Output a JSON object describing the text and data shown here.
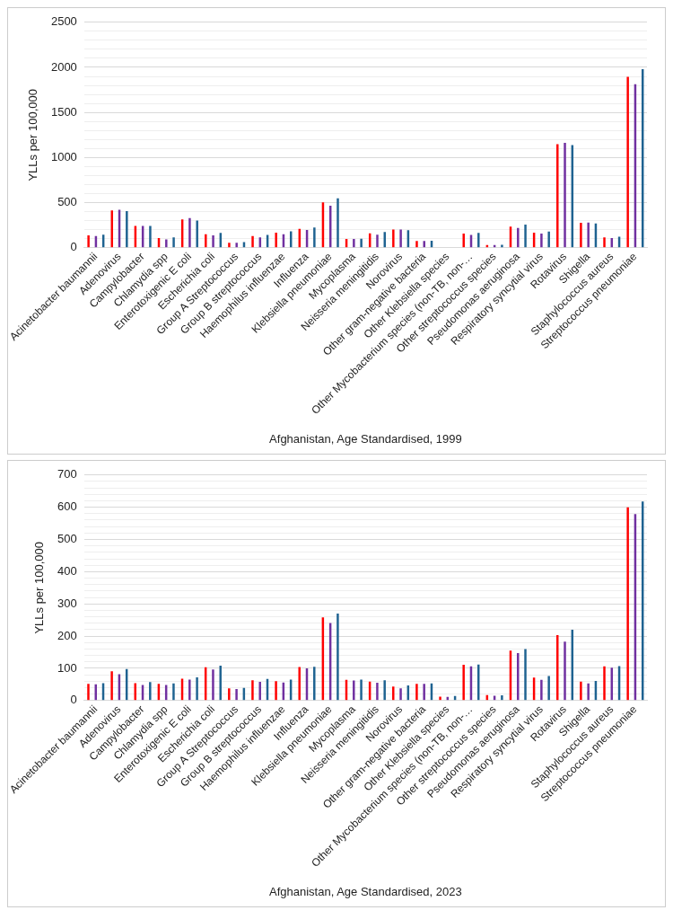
{
  "chart_data": [
    {
      "type": "bar",
      "xlabel": "Afghanistan, Age Standardised, 1999",
      "ylabel": "YLLs per 100,000",
      "categories": [
        "Acinetobacter baumannii",
        "Adenovirus",
        "Campylobacter",
        "Chlamydia spp",
        "Enterotoxigenic E coli",
        "Escherichia coli",
        "Group A Streptococcus",
        "Group B streptococcus",
        "Haemophilus influenzae",
        "Influenza",
        "Klebsiella pneumoniae",
        "Mycoplasma",
        "Neisseria meningitidis",
        "Norovirus",
        "Other gram-negative bacteria",
        "Other Klebsiella species",
        "Other Mycobacterium species (non-TB, non-…",
        "Other streptococcus species",
        "Pseudomonas aeruginosa",
        "Respiratory syncytial virus",
        "Rotavirus",
        "Shigella",
        "Staphylococcus aureus",
        "Streptococcus pneumoniae"
      ],
      "series": [
        {
          "color": "#ff0000",
          "values": [
            138,
            414,
            242,
            108,
            313,
            149,
            56,
            130,
            168,
            209,
            503,
            97,
            160,
            201,
            75,
            5,
            157,
            30,
            235,
            168,
            1149,
            276,
            116,
            1895
          ]
        },
        {
          "color": "#7030a0",
          "values": [
            130,
            421,
            242,
            93,
            328,
            138,
            56,
            116,
            149,
            198,
            466,
            97,
            145,
            201,
            75,
            5,
            142,
            30,
            220,
            157,
            1164,
            280,
            108,
            1813
          ]
        },
        {
          "color": "#1f6391",
          "values": [
            145,
            406,
            242,
            116,
            302,
            164,
            63,
            142,
            183,
            224,
            548,
            100,
            175,
            194,
            78,
            5,
            164,
            34,
            257,
            179,
            1138,
            269,
            123,
            1981
          ]
        }
      ],
      "ylim": [
        0,
        2500
      ],
      "yticks": [
        0,
        {
          "value": 100,
          "label": null
        },
        {
          "value": 200,
          "label": null
        },
        {
          "value": 300,
          "label": null
        },
        {
          "value": 400,
          "label": null
        },
        500,
        {
          "value": 600,
          "label": null
        },
        {
          "value": 700,
          "label": null
        },
        {
          "value": 800,
          "label": null
        },
        {
          "value": 900,
          "label": null
        },
        1000,
        {
          "value": 1100,
          "label": null
        },
        {
          "value": 1200,
          "label": null
        },
        {
          "value": 1300,
          "label": null
        },
        {
          "value": 1400,
          "label": null
        },
        1500,
        {
          "value": 1600,
          "label": null
        },
        {
          "value": 1700,
          "label": null
        },
        {
          "value": 1800,
          "label": null
        },
        {
          "value": 1900,
          "label": null
        },
        2000,
        {
          "value": 2100,
          "label": null
        },
        {
          "value": 2200,
          "label": null
        },
        {
          "value": 2300,
          "label": null
        },
        {
          "value": 2400,
          "label": null
        },
        2500
      ],
      "grid": "y",
      "legend": false
    },
    {
      "type": "bar",
      "xlabel": "Afghanistan, Age Standardised, 2023",
      "ylabel": "YLLs per 100,000",
      "categories": [
        "Acinetobacter baumannii",
        "Adenovirus",
        "Campylobacter",
        "Chlamydia spp",
        "Enterotoxigenic E coli",
        "Escherichia coli",
        "Group A Streptococcus",
        "Group B streptococcus",
        "Haemophilus influenzae",
        "Influenza",
        "Klebsiella pneumoniae",
        "Mycoplasma",
        "Neisseria meningitidis",
        "Norovirus",
        "Other gram-negative bacteria",
        "Other Klebsiella species",
        "Other Mycobacterium species (non-TB, non-…",
        "Other streptococcus species",
        "Pseudomonas aeruginosa",
        "Respiratory syncytial virus",
        "Rotavirus",
        "Shigella",
        "Staphylococcus aureus",
        "Streptococcus pneumoniae"
      ],
      "series": [
        {
          "color": "#ff0000",
          "values": [
            52,
            91,
            54,
            52,
            68,
            103,
            38,
            63,
            60,
            104,
            258,
            64,
            59,
            43,
            52,
            12,
            111,
            17,
            155,
            71,
            203,
            59,
            106,
            600
          ]
        },
        {
          "color": "#7030a0",
          "values": [
            50,
            82,
            48,
            48,
            65,
            96,
            36,
            58,
            56,
            100,
            241,
            62,
            55,
            38,
            52,
            11,
            106,
            15,
            147,
            64,
            183,
            53,
            102,
            579
          ]
        },
        {
          "color": "#1f6391",
          "values": [
            54,
            98,
            57,
            53,
            72,
            108,
            39,
            67,
            65,
            105,
            270,
            65,
            63,
            47,
            53,
            14,
            112,
            16,
            160,
            76,
            220,
            61,
            107,
            618
          ]
        }
      ],
      "ylim": [
        0,
        700
      ],
      "yticks": [
        0,
        {
          "value": 20,
          "label": null
        },
        {
          "value": 40,
          "label": null
        },
        {
          "value": 60,
          "label": null
        },
        {
          "value": 80,
          "label": null
        },
        100,
        {
          "value": 120,
          "label": null
        },
        {
          "value": 140,
          "label": null
        },
        {
          "value": 160,
          "label": null
        },
        {
          "value": 180,
          "label": null
        },
        200,
        {
          "value": 220,
          "label": null
        },
        {
          "value": 240,
          "label": null
        },
        {
          "value": 260,
          "label": null
        },
        {
          "value": 280,
          "label": null
        },
        300,
        {
          "value": 320,
          "label": null
        },
        {
          "value": 340,
          "label": null
        },
        {
          "value": 360,
          "label": null
        },
        {
          "value": 380,
          "label": null
        },
        400,
        {
          "value": 420,
          "label": null
        },
        {
          "value": 440,
          "label": null
        },
        {
          "value": 460,
          "label": null
        },
        {
          "value": 480,
          "label": null
        },
        500,
        {
          "value": 520,
          "label": null
        },
        {
          "value": 540,
          "label": null
        },
        {
          "value": 560,
          "label": null
        },
        {
          "value": 580,
          "label": null
        },
        600,
        {
          "value": 620,
          "label": null
        },
        {
          "value": 640,
          "label": null
        },
        {
          "value": 660,
          "label": null
        },
        {
          "value": 680,
          "label": null
        },
        700
      ],
      "grid": "y",
      "legend": false
    }
  ]
}
